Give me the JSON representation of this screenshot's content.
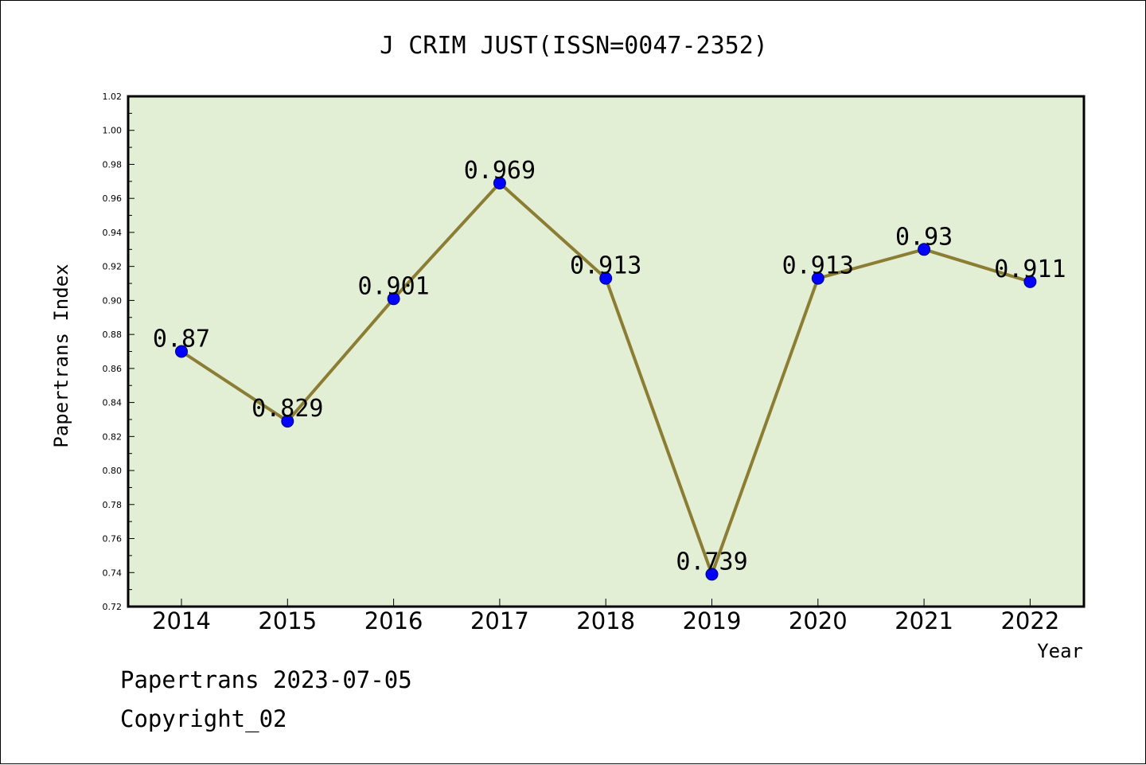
{
  "chart_data": {
    "type": "line",
    "title": "J CRIM JUST(ISSN=0047-2352)",
    "xlabel": "Year",
    "ylabel": "Papertrans Index",
    "categories": [
      "2014",
      "2015",
      "2016",
      "2017",
      "2018",
      "2019",
      "2020",
      "2021",
      "2022"
    ],
    "series": [
      {
        "values": [
          0.87,
          0.829,
          0.901,
          0.969,
          0.913,
          0.739,
          0.913,
          0.93,
          0.911
        ],
        "labels": [
          "0.87",
          "0.829",
          "0.901",
          "0.969",
          "0.913",
          "0.739",
          "0.913",
          "0.93",
          "0.911"
        ]
      }
    ],
    "ylim": [
      0.72,
      1.02
    ],
    "yticks": [
      "0.72",
      "0.74",
      "0.76",
      "0.78",
      "0.80",
      "0.82",
      "0.84",
      "0.86",
      "0.88",
      "0.90",
      "0.92",
      "0.94",
      "0.96",
      "0.98",
      "1.00",
      "1.02"
    ],
    "grid": false,
    "colors": {
      "plot_background": "#e2efd4",
      "line": "#8b7d33",
      "marker": "#0000ff"
    }
  },
  "footer": {
    "date_line": "Papertrans 2023-07-05",
    "copyright": "Copyright_02"
  }
}
